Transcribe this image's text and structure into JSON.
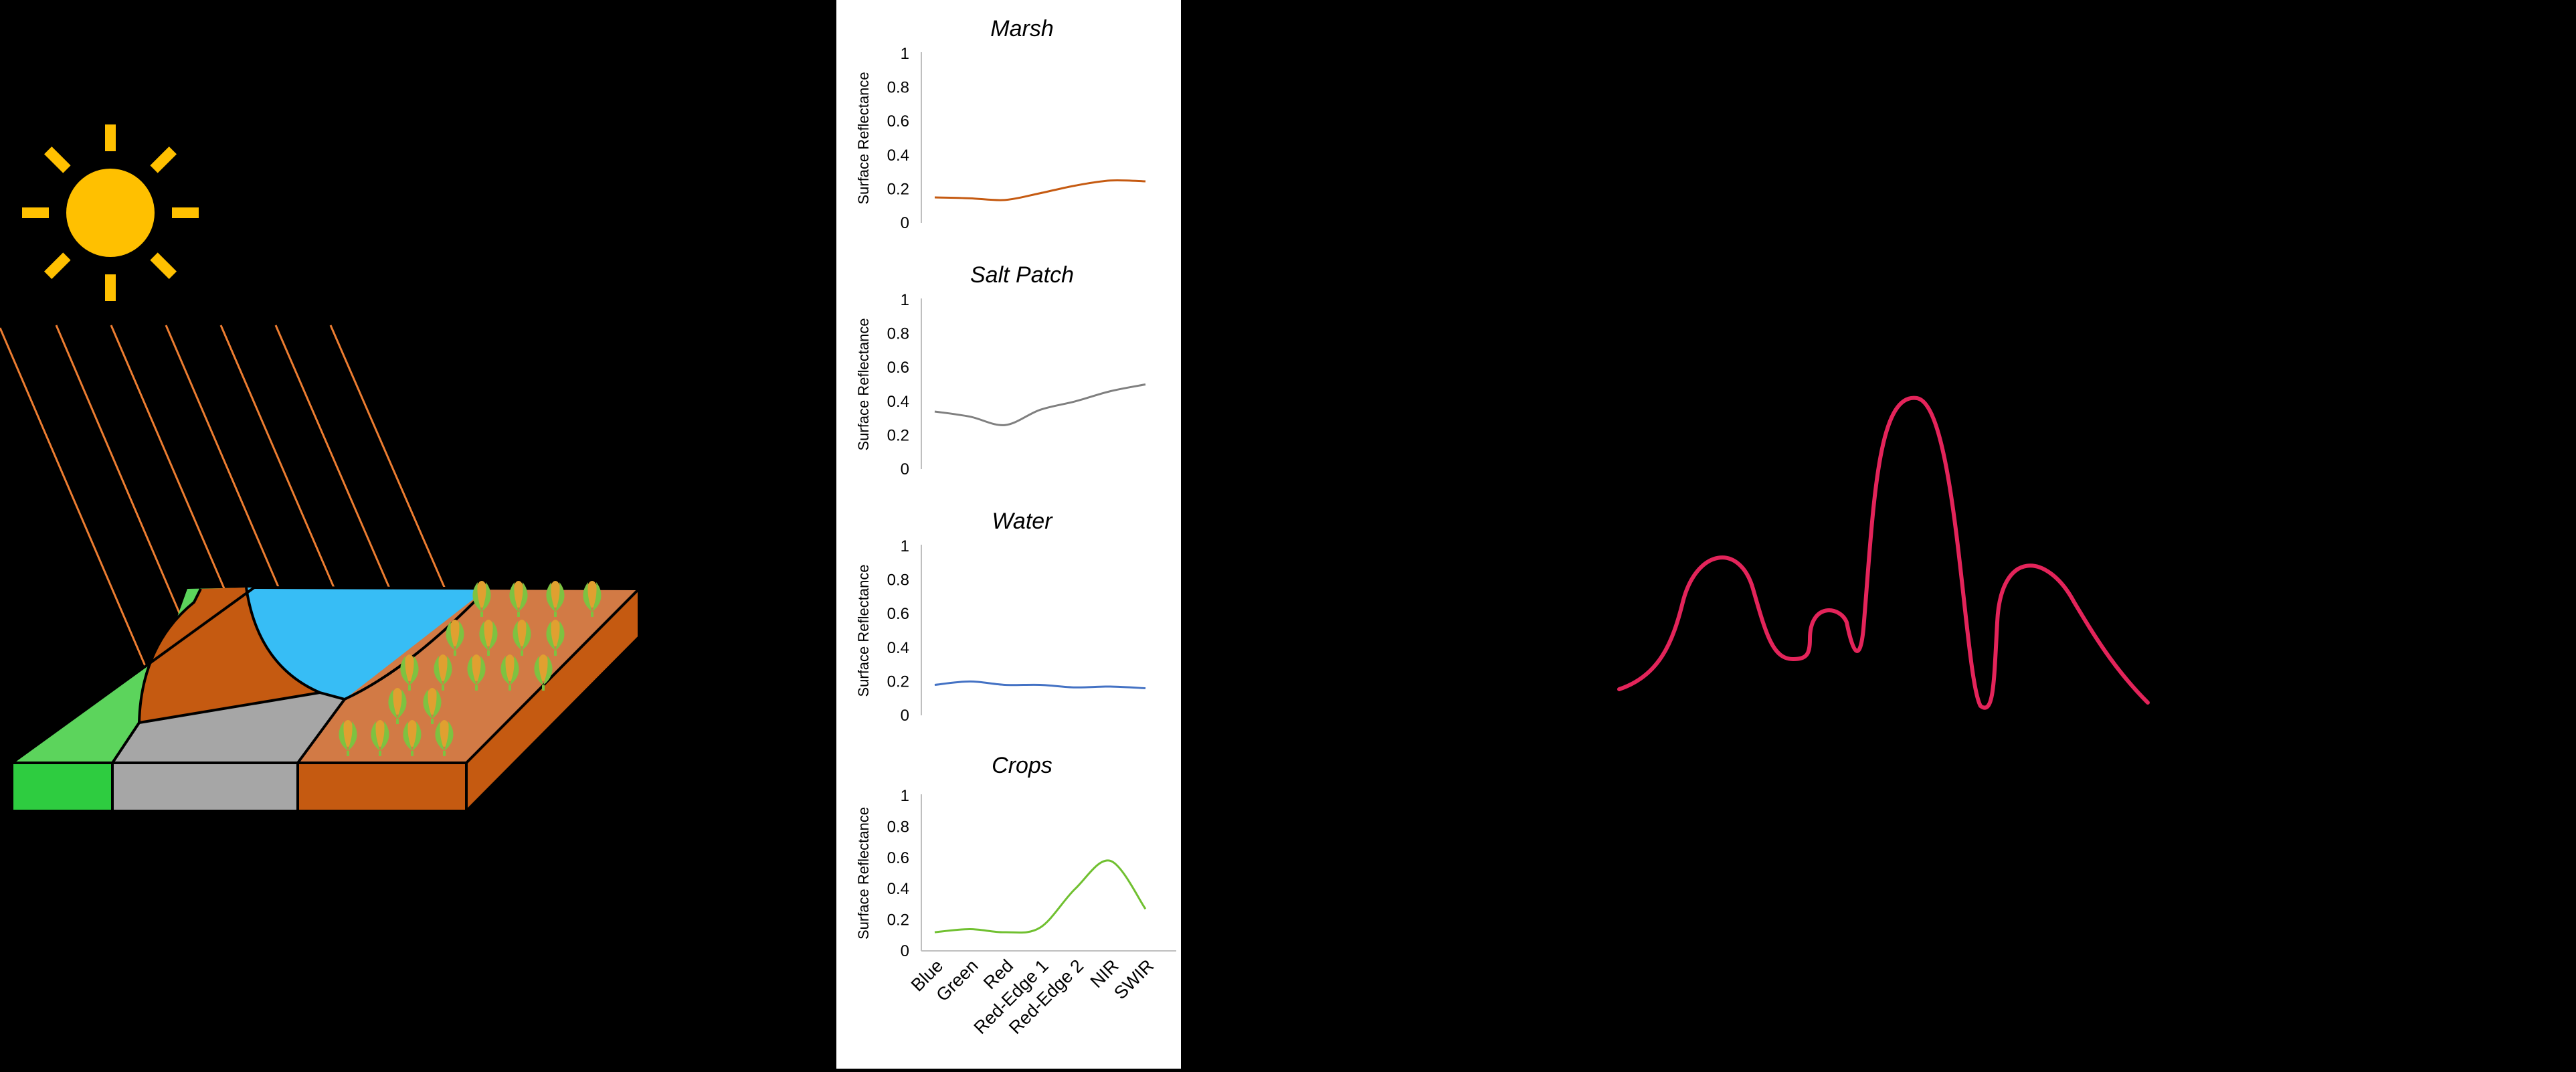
{
  "colors": {
    "sun": "#FFC000",
    "ray": "#ED7D31",
    "marsh_land": "#5CD45C",
    "marsh_side": "#2ECC40",
    "soil": "#C55A11",
    "salt": "#A6A6A6",
    "water": "#37BDF5",
    "crop_field": "#D27A45",
    "crop_side": "#C55A11",
    "crop_plant": "#7DC241",
    "spectrum_curve": "#E3245A"
  },
  "icons": [
    "sun-icon",
    "crop-plant-icon"
  ],
  "chart_data": [
    {
      "type": "line",
      "title": "Marsh",
      "ylabel": "Surface Reflectance",
      "categories": [
        "Blue",
        "Green",
        "Red",
        "Red-Edge 1",
        "Red-Edge 2",
        "NIR",
        "SWIR"
      ],
      "y_ticks": [
        "0",
        "0.2",
        "0.4",
        "0.6",
        "0.8",
        "1"
      ],
      "ylim": [
        0,
        1
      ],
      "color": "#C55A11",
      "values": [
        0.15,
        0.145,
        0.135,
        0.175,
        0.22,
        0.25,
        0.245
      ],
      "show_category_labels": false
    },
    {
      "type": "line",
      "title": "Salt Patch",
      "ylabel": "Surface Reflectance",
      "categories": [
        "Blue",
        "Green",
        "Red",
        "Red-Edge 1",
        "Red-Edge 2",
        "NIR",
        "SWIR"
      ],
      "y_ticks": [
        "0",
        "0.2",
        "0.4",
        "0.6",
        "0.8",
        "1"
      ],
      "ylim": [
        0,
        1
      ],
      "color": "#808080",
      "values": [
        0.34,
        0.31,
        0.26,
        0.35,
        0.4,
        0.46,
        0.5
      ],
      "show_category_labels": false
    },
    {
      "type": "line",
      "title": "Water",
      "ylabel": "Surface Reflectance",
      "categories": [
        "Blue",
        "Green",
        "Red",
        "Red-Edge 1",
        "Red-Edge 2",
        "NIR",
        "SWIR"
      ],
      "y_ticks": [
        "0",
        "0.2",
        "0.4",
        "0.6",
        "0.8",
        "1"
      ],
      "ylim": [
        0,
        1
      ],
      "color": "#4472C4",
      "values": [
        0.18,
        0.2,
        0.18,
        0.18,
        0.165,
        0.17,
        0.16
      ],
      "show_category_labels": false
    },
    {
      "type": "line",
      "title": "Crops",
      "ylabel": "Surface Reflectance",
      "categories": [
        "Blue",
        "Green",
        "Red",
        "Red-Edge 1",
        "Red-Edge 2",
        "NIR",
        "SWIR"
      ],
      "y_ticks": [
        "0",
        "0.2",
        "0.4",
        "0.6",
        "0.8",
        "1"
      ],
      "ylim": [
        0,
        1
      ],
      "color": "#70C030",
      "values": [
        0.12,
        0.14,
        0.12,
        0.15,
        0.4,
        0.58,
        0.27
      ],
      "show_category_labels": true
    }
  ]
}
